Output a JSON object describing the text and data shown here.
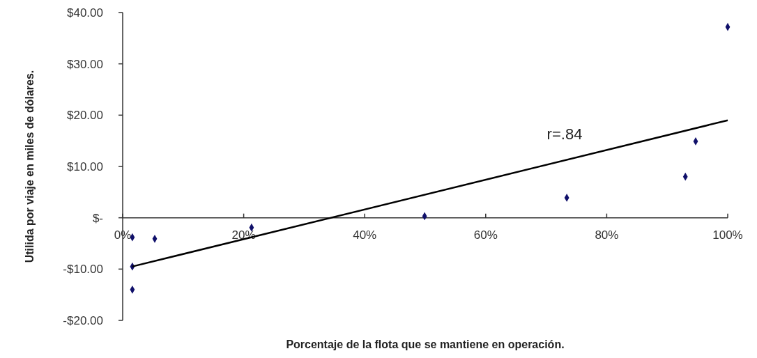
{
  "chart_data": {
    "type": "scatter",
    "xlabel": "Porcentaje de la flota que se mantiene en operación.",
    "ylabel": "Utilida por viaje en miles de dólares.",
    "xlim": [
      0,
      100
    ],
    "ylim": [
      -20,
      40
    ],
    "xticks": [
      {
        "value": 0,
        "label": "0%"
      },
      {
        "value": 20,
        "label": "20%"
      },
      {
        "value": 40,
        "label": "40%"
      },
      {
        "value": 60,
        "label": "60%"
      },
      {
        "value": 80,
        "label": "80%"
      },
      {
        "value": 100,
        "label": "100%"
      }
    ],
    "yticks": [
      {
        "value": -20,
        "label": "-$20.00"
      },
      {
        "value": -10,
        "label": "-$10.00"
      },
      {
        "value": 0,
        "label": "$-"
      },
      {
        "value": 10,
        "label": "$10.00"
      },
      {
        "value": 20,
        "label": "$20.00"
      },
      {
        "value": 30,
        "label": "$30.00"
      },
      {
        "value": 40,
        "label": "$40.00"
      }
    ],
    "grid": false,
    "marker": "diamond",
    "series": [
      {
        "color": "#10106a",
        "x": [
          1.6,
          5.3,
          21.3,
          1.6,
          1.6,
          49.9,
          73.4,
          93.0,
          94.7,
          100
        ],
        "values": [
          -3.8,
          -4.1,
          -1.9,
          -9.5,
          -14.0,
          0.3,
          3.9,
          8.0,
          14.9,
          37.2
        ]
      },
      {
        "type": "line",
        "color": "#000000",
        "marker": "none",
        "line_style": "solid",
        "x": [
          1.6,
          100
        ],
        "values": [
          -9.5,
          19.0
        ]
      }
    ],
    "annotations": [
      "r=.84"
    ]
  }
}
